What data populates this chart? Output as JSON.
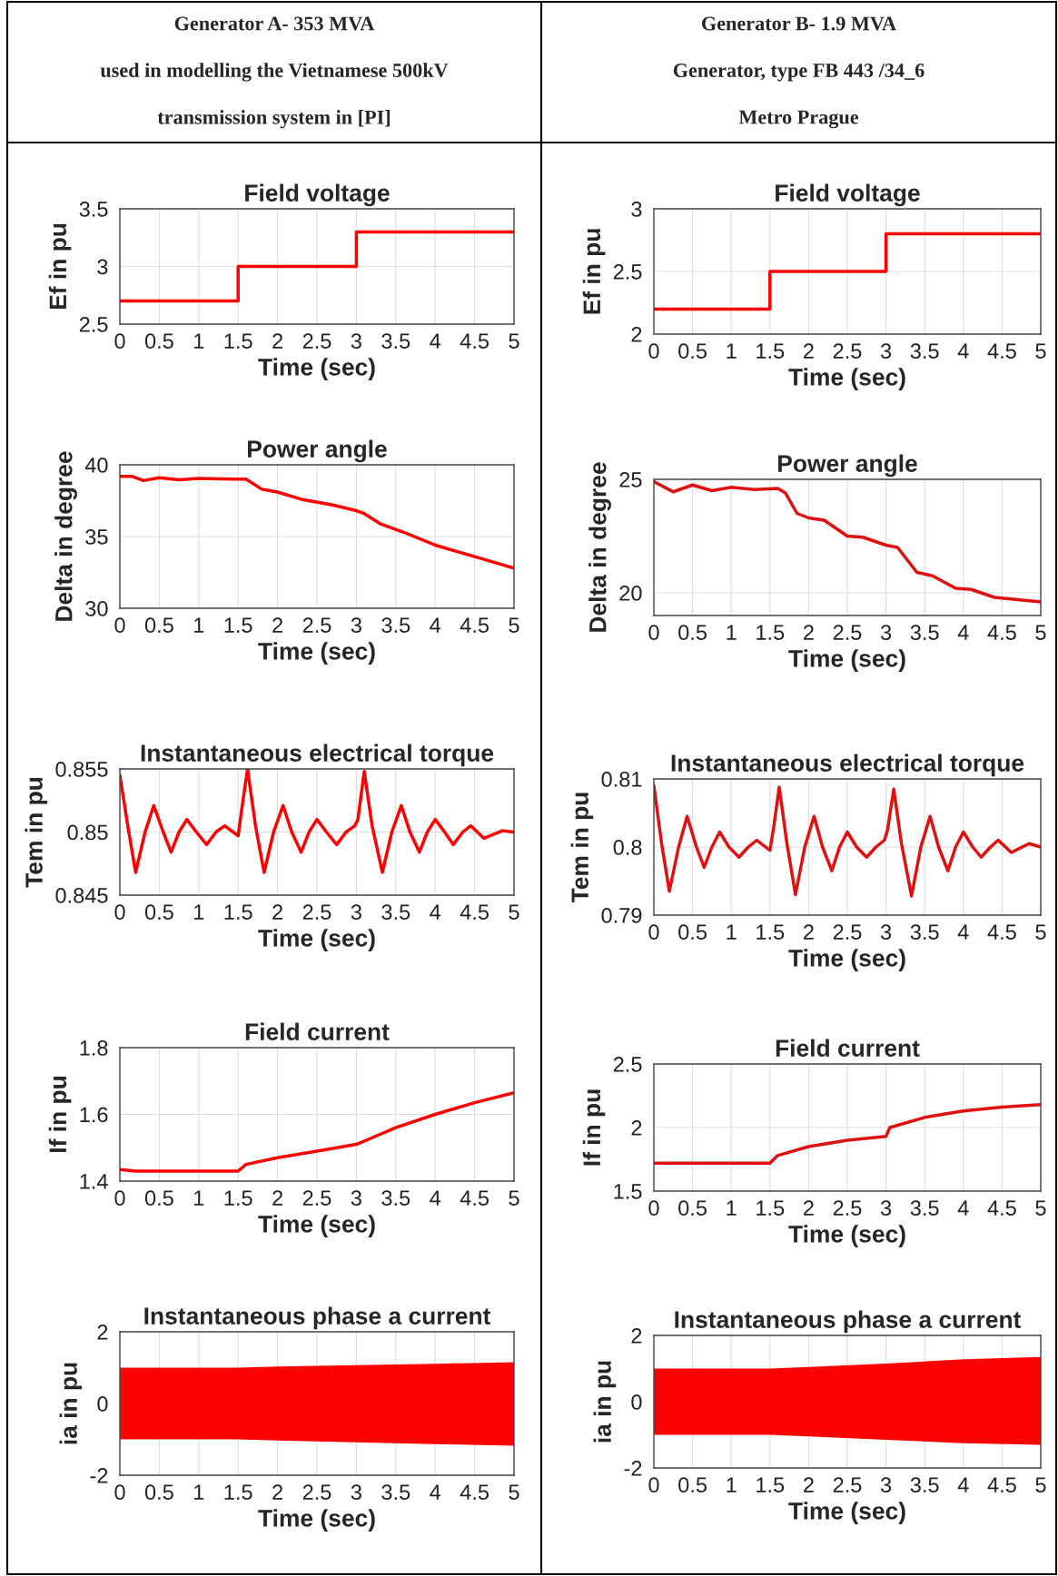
{
  "chart_data": [
    {
      "type": "other",
      "title": "Generator A- 353 MVA",
      "annotations": [
        "used in modelling the Vietnamese 500kV",
        "transmission system in [PI]"
      ]
    },
    {
      "type": "other",
      "title": "Generator B- 1.9 MVA",
      "annotations": [
        "Generator, type FB 443 /34_6",
        "Metro Prague"
      ]
    },
    {
      "type": "step",
      "title": "Field voltage",
      "xlabel": "Time (sec)",
      "ylabel": "Ef in pu",
      "xlim": [
        0,
        5
      ],
      "ylim": [
        2.5,
        3.5
      ],
      "xticks": [
        0,
        0.5,
        1,
        1.5,
        2,
        2.5,
        3,
        3.5,
        4,
        4.5,
        5
      ],
      "yticks": [
        2.5,
        3,
        3.5
      ],
      "grid": true,
      "series": [
        {
          "color": "#ff0000",
          "x": [
            0,
            1.5,
            3,
            5
          ],
          "values": [
            2.7,
            3.0,
            3.3,
            3.3
          ]
        }
      ]
    },
    {
      "type": "step",
      "title": "Field voltage",
      "xlabel": "Time (sec)",
      "ylabel": "Ef in pu",
      "xlim": [
        0,
        5
      ],
      "ylim": [
        2,
        3
      ],
      "xticks": [
        0,
        0.5,
        1,
        1.5,
        2,
        2.5,
        3,
        3.5,
        4,
        4.5,
        5
      ],
      "yticks": [
        2,
        2.5,
        3
      ],
      "grid": true,
      "series": [
        {
          "color": "#ff0000",
          "x": [
            0,
            1.5,
            3,
            5
          ],
          "values": [
            2.2,
            2.5,
            2.8,
            2.8
          ]
        }
      ]
    },
    {
      "type": "line",
      "title": "Power angle",
      "xlabel": "Time (sec)",
      "ylabel": "Delta in degree",
      "xlim": [
        0,
        5
      ],
      "ylim": [
        30,
        40
      ],
      "xticks": [
        0,
        0.5,
        1,
        1.5,
        2,
        2.5,
        3,
        3.5,
        4,
        4.5,
        5
      ],
      "yticks": [
        30,
        35,
        40
      ],
      "grid": true,
      "series": [
        {
          "color": "#ff0000",
          "x": [
            0,
            0.15,
            0.3,
            0.5,
            0.75,
            1,
            1.5,
            1.6,
            1.8,
            2,
            2.3,
            2.7,
            3,
            3.1,
            3.3,
            3.6,
            4,
            4.5,
            5
          ],
          "values": [
            39.2,
            39.2,
            38.9,
            39.1,
            38.95,
            39.05,
            39.0,
            39.0,
            38.3,
            38.1,
            37.6,
            37.2,
            36.8,
            36.6,
            35.9,
            35.3,
            34.4,
            33.6,
            32.8
          ]
        }
      ]
    },
    {
      "type": "line",
      "title": "Power angle",
      "xlabel": "Time (sec)",
      "ylabel": "Delta in degree",
      "xlim": [
        0,
        5
      ],
      "ylim": [
        19,
        25
      ],
      "xticks": [
        0,
        0.5,
        1,
        1.5,
        2,
        2.5,
        3,
        3.5,
        4,
        4.5,
        5
      ],
      "yticks": [
        20,
        25
      ],
      "grid": true,
      "series": [
        {
          "color": "#e01010",
          "x": [
            0,
            0.25,
            0.5,
            0.75,
            1,
            1.3,
            1.6,
            1.7,
            1.85,
            2,
            2.2,
            2.5,
            2.7,
            3,
            3.15,
            3.4,
            3.6,
            3.9,
            4.1,
            4.4,
            4.7,
            5
          ],
          "values": [
            24.9,
            24.45,
            24.75,
            24.5,
            24.65,
            24.55,
            24.6,
            24.4,
            23.5,
            23.3,
            23.2,
            22.5,
            22.45,
            22.1,
            22.0,
            20.9,
            20.75,
            20.2,
            20.15,
            19.8,
            19.7,
            19.6
          ]
        }
      ]
    },
    {
      "type": "line",
      "title": "Instantaneous electrical torque",
      "xlabel": "Time (sec)",
      "ylabel": "Tem in pu",
      "xlim": [
        0,
        5
      ],
      "ylim": [
        0.845,
        0.855
      ],
      "xticks": [
        0,
        0.5,
        1,
        1.5,
        2,
        2.5,
        3,
        3.5,
        4,
        4.5,
        5
      ],
      "yticks": [
        0.845,
        0.85,
        0.855
      ],
      "grid": true,
      "series": [
        {
          "color": "#ff0000",
          "x": [
            0,
            0.1,
            0.2,
            0.32,
            0.43,
            0.55,
            0.65,
            0.75,
            0.85,
            0.97,
            1.1,
            1.22,
            1.33,
            1.5,
            1.55,
            1.62,
            1.72,
            1.83,
            1.95,
            2.07,
            2.18,
            2.3,
            2.4,
            2.5,
            2.62,
            2.75,
            2.87,
            2.98,
            3.02,
            3.1,
            3.2,
            3.33,
            3.45,
            3.57,
            3.68,
            3.8,
            3.9,
            4.0,
            4.12,
            4.23,
            4.35,
            4.45,
            4.62,
            4.85,
            5
          ],
          "values": [
            0.8545,
            0.8505,
            0.8468,
            0.85,
            0.8521,
            0.85,
            0.8484,
            0.85,
            0.851,
            0.85,
            0.849,
            0.85,
            0.8505,
            0.8497,
            0.852,
            0.855,
            0.8505,
            0.8468,
            0.85,
            0.8521,
            0.85,
            0.8484,
            0.85,
            0.851,
            0.85,
            0.849,
            0.85,
            0.8505,
            0.851,
            0.8548,
            0.8505,
            0.8468,
            0.85,
            0.8521,
            0.85,
            0.8484,
            0.85,
            0.851,
            0.85,
            0.849,
            0.85,
            0.8505,
            0.8495,
            0.8501,
            0.85
          ]
        }
      ]
    },
    {
      "type": "line",
      "title": "Instantaneous electrical torque",
      "xlabel": "Time (sec)",
      "ylabel": "Tem in pu",
      "xlim": [
        0,
        5
      ],
      "ylim": [
        0.79,
        0.81
      ],
      "xticks": [
        0,
        0.5,
        1,
        1.5,
        2,
        2.5,
        3,
        3.5,
        4,
        4.5,
        5
      ],
      "yticks": [
        0.79,
        0.8,
        0.81
      ],
      "grid": true,
      "series": [
        {
          "color": "#e01010",
          "x": [
            0,
            0.1,
            0.2,
            0.32,
            0.43,
            0.55,
            0.65,
            0.75,
            0.85,
            0.97,
            1.1,
            1.22,
            1.33,
            1.5,
            1.55,
            1.62,
            1.72,
            1.83,
            1.95,
            2.07,
            2.18,
            2.3,
            2.4,
            2.5,
            2.62,
            2.75,
            2.87,
            2.98,
            3.02,
            3.1,
            3.2,
            3.33,
            3.45,
            3.57,
            3.68,
            3.8,
            3.9,
            4.0,
            4.12,
            4.23,
            4.35,
            4.45,
            4.62,
            4.85,
            5
          ],
          "values": [
            0.809,
            0.8005,
            0.7935,
            0.8,
            0.8045,
            0.8,
            0.797,
            0.8,
            0.8022,
            0.8,
            0.7985,
            0.8,
            0.801,
            0.7995,
            0.803,
            0.8088,
            0.8005,
            0.793,
            0.8,
            0.8045,
            0.8,
            0.7965,
            0.8,
            0.8022,
            0.8,
            0.7985,
            0.8,
            0.801,
            0.8025,
            0.8085,
            0.8005,
            0.7928,
            0.8,
            0.8045,
            0.8,
            0.7965,
            0.8,
            0.8022,
            0.8,
            0.7985,
            0.8,
            0.801,
            0.7992,
            0.8005,
            0.8
          ]
        }
      ]
    },
    {
      "type": "line",
      "title": "Field current",
      "xlabel": "Time (sec)",
      "ylabel": "If in pu",
      "xlim": [
        0,
        5
      ],
      "ylim": [
        1.4,
        1.8
      ],
      "xticks": [
        0,
        0.5,
        1,
        1.5,
        2,
        2.5,
        3,
        3.5,
        4,
        4.5,
        5
      ],
      "yticks": [
        1.4,
        1.6,
        1.8
      ],
      "grid": true,
      "series": [
        {
          "color": "#ff0000",
          "x": [
            0,
            0.2,
            1.5,
            1.6,
            2,
            2.5,
            3,
            3.2,
            3.5,
            4,
            4.5,
            5
          ],
          "values": [
            1.435,
            1.43,
            1.43,
            1.45,
            1.47,
            1.49,
            1.51,
            1.53,
            1.56,
            1.6,
            1.635,
            1.665
          ]
        }
      ]
    },
    {
      "type": "line",
      "title": "Field current",
      "xlabel": "Time (sec)",
      "ylabel": "If in pu",
      "xlim": [
        0,
        5
      ],
      "ylim": [
        1.5,
        2.5
      ],
      "xticks": [
        0,
        0.5,
        1,
        1.5,
        2,
        2.5,
        3,
        3.5,
        4,
        4.5,
        5
      ],
      "yticks": [
        1.5,
        2,
        2.5
      ],
      "grid": true,
      "series": [
        {
          "color": "#e01010",
          "x": [
            0,
            1.5,
            1.6,
            2,
            2.5,
            3,
            3.05,
            3.5,
            4,
            4.5,
            5
          ],
          "values": [
            1.72,
            1.72,
            1.78,
            1.85,
            1.9,
            1.93,
            2.0,
            2.08,
            2.13,
            2.16,
            2.18
          ]
        }
      ]
    },
    {
      "type": "area",
      "title": "Instantaneous phase a current",
      "xlabel": "Time (sec)",
      "ylabel": "ia in pu",
      "xlim": [
        0,
        5
      ],
      "ylim": [
        -2,
        2
      ],
      "xticks": [
        0,
        0.5,
        1,
        1.5,
        2,
        2.5,
        3,
        3.5,
        4,
        4.5,
        5
      ],
      "yticks": [
        {
          "value": -2,
          "label": "-2"
        },
        0,
        2
      ],
      "grid": true,
      "series": [
        {
          "color": "#ff0000",
          "x": [
            0,
            1.5,
            2,
            3,
            4,
            5
          ],
          "values": [
            1.0,
            1.0,
            1.03,
            1.07,
            1.11,
            1.15
          ]
        },
        {
          "color": "#ff0000",
          "x": [
            0,
            1.5,
            2,
            3,
            4,
            5
          ],
          "values": [
            -1.0,
            -1.0,
            -1.03,
            -1.08,
            -1.13,
            -1.18
          ]
        }
      ]
    },
    {
      "type": "area",
      "title": "Instantaneous phase a current",
      "xlabel": "Time (sec)",
      "ylabel": "ia in pu",
      "xlim": [
        0,
        5
      ],
      "ylim": [
        -2,
        2
      ],
      "xticks": [
        0,
        0.5,
        1,
        1.5,
        2,
        2.5,
        3,
        3.5,
        4,
        4.5,
        5
      ],
      "yticks": [
        {
          "value": -2,
          "label": "-2"
        },
        0,
        2
      ],
      "grid": true,
      "series": [
        {
          "color": "#ff0000",
          "x": [
            0,
            1.5,
            2,
            3,
            4,
            5
          ],
          "values": [
            1.0,
            1.0,
            1.05,
            1.15,
            1.28,
            1.35
          ]
        },
        {
          "color": "#ff0000",
          "x": [
            0,
            1.5,
            2,
            3,
            4,
            5
          ],
          "values": [
            -1.0,
            -1.0,
            -1.05,
            -1.15,
            -1.25,
            -1.3
          ]
        }
      ]
    }
  ]
}
